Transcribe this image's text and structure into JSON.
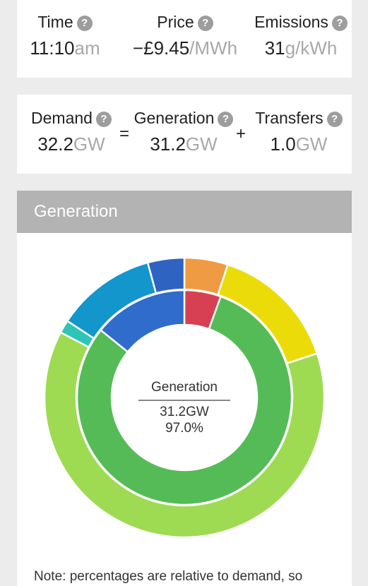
{
  "summary": {
    "time": {
      "label": "Time",
      "value": "11:10",
      "unit": "am"
    },
    "price": {
      "label": "Price",
      "value": "−£9.45",
      "unit": "/MWh"
    },
    "emissions": {
      "label": "Emissions",
      "value": "31",
      "unit": "g/kWh"
    }
  },
  "balance": {
    "demand": {
      "label": "Demand",
      "value": "32.2",
      "unit": "GW"
    },
    "equals": "=",
    "generation": {
      "label": "Generation",
      "value": "31.2",
      "unit": "GW"
    },
    "plus": "+",
    "transfers": {
      "label": "Transfers",
      "value": "1.0",
      "unit": "GW"
    }
  },
  "help_glyph": "?",
  "generation_panel": {
    "title": "Generation",
    "center": {
      "title": "Generation",
      "value": "31.2GW",
      "percent": "97.0%"
    },
    "note": "Note: percentages are relative to demand, so"
  },
  "chart_data": {
    "type": "pie",
    "rings": [
      {
        "name": "outer",
        "slices": [
          {
            "value": 5.0,
            "color": "#ef9b43"
          },
          {
            "value": 14.8,
            "color": "#ebdc09"
          },
          {
            "value": 62.5,
            "color": "#9edb52"
          },
          {
            "value": 1.5,
            "color": "#2ec4b6"
          },
          {
            "value": 11.5,
            "color": "#1296cc"
          },
          {
            "value": 4.2,
            "color": "#2f63c2"
          }
        ]
      },
      {
        "name": "inner",
        "slices": [
          {
            "value": 5.5,
            "color": "#d64052"
          },
          {
            "value": 80.3,
            "color": "#55bb57"
          },
          {
            "value": 14.2,
            "color": "#2f6ccb"
          }
        ]
      }
    ]
  }
}
